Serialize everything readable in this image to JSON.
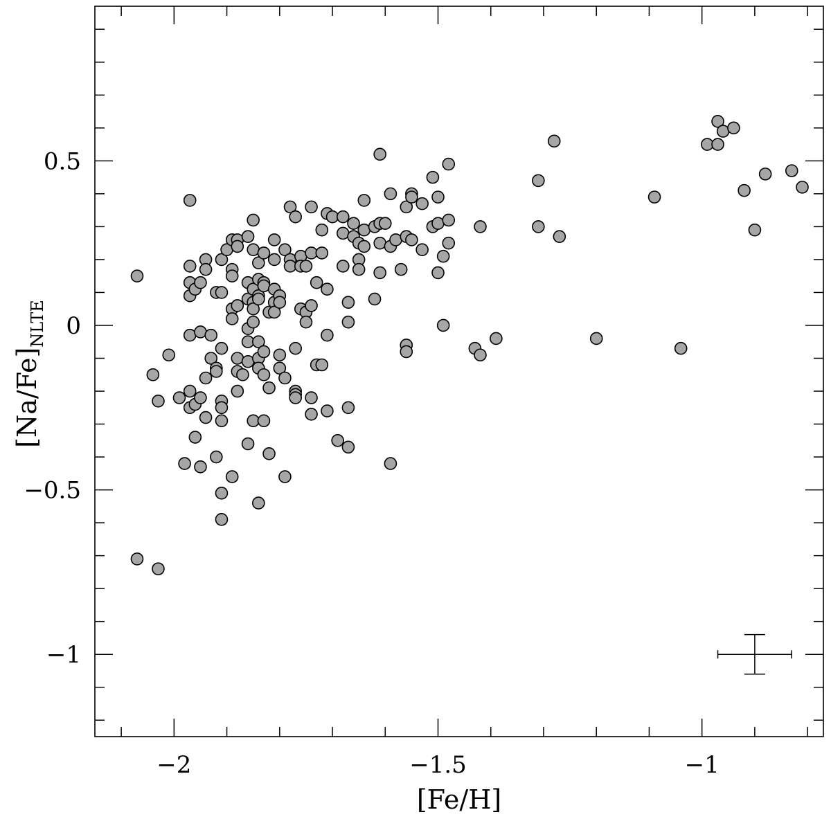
{
  "chart_data": {
    "type": "scatter",
    "xlabel": "[Fe/H]",
    "ylabel": "[Na/Fe]",
    "ylabel_subscript": "NLTE",
    "xlim": [
      -2.15,
      -0.77
    ],
    "ylim": [
      -1.25,
      0.97
    ],
    "x_ticks": [
      {
        "value": -2,
        "label": "−2"
      },
      {
        "value": -1.5,
        "label": "−1.5"
      },
      {
        "value": -1,
        "label": "−1"
      }
    ],
    "y_ticks": [
      {
        "value": 0.5,
        "label": "0.5"
      },
      {
        "value": 0,
        "label": "0"
      },
      {
        "value": -0.5,
        "label": "−0.5"
      },
      {
        "value": -1,
        "label": "−1"
      }
    ],
    "x_minor_step": 0.1,
    "y_minor_step": 0.1,
    "grid": false,
    "marker": {
      "fill": "#a6a6a6",
      "edge": "#000000"
    },
    "error_bar": {
      "x": -0.9,
      "y": -1.0,
      "xerr": 0.07,
      "yerr": 0.06
    },
    "points": [
      [
        -2.07,
        0.15
      ],
      [
        -2.07,
        -0.71
      ],
      [
        -2.04,
        -0.15
      ],
      [
        -2.03,
        -0.23
      ],
      [
        -2.03,
        -0.74
      ],
      [
        -2.01,
        -0.09
      ],
      [
        -1.99,
        -0.22
      ],
      [
        -1.98,
        -0.42
      ],
      [
        -1.97,
        0.38
      ],
      [
        -1.97,
        0.18
      ],
      [
        -1.97,
        0.13
      ],
      [
        -1.97,
        0.09
      ],
      [
        -1.97,
        -0.03
      ],
      [
        -1.97,
        -0.2
      ],
      [
        -1.97,
        -0.25
      ],
      [
        -1.96,
        0.11
      ],
      [
        -1.96,
        -0.24
      ],
      [
        -1.96,
        -0.34
      ],
      [
        -1.95,
        0.13
      ],
      [
        -1.95,
        -0.02
      ],
      [
        -1.95,
        -0.22
      ],
      [
        -1.95,
        -0.43
      ],
      [
        -1.94,
        0.2
      ],
      [
        -1.94,
        0.17
      ],
      [
        -1.94,
        -0.16
      ],
      [
        -1.94,
        -0.28
      ],
      [
        -1.93,
        -0.03
      ],
      [
        -1.93,
        -0.1
      ],
      [
        -1.92,
        0.1
      ],
      [
        -1.92,
        -0.13
      ],
      [
        -1.92,
        -0.14
      ],
      [
        -1.92,
        -0.4
      ],
      [
        -1.91,
        0.2
      ],
      [
        -1.91,
        0.1
      ],
      [
        -1.91,
        -0.07
      ],
      [
        -1.91,
        -0.23
      ],
      [
        -1.91,
        -0.25
      ],
      [
        -1.91,
        -0.29
      ],
      [
        -1.91,
        -0.51
      ],
      [
        -1.91,
        -0.59
      ],
      [
        -1.9,
        0.23
      ],
      [
        -1.89,
        0.26
      ],
      [
        -1.89,
        0.17
      ],
      [
        -1.89,
        0.15
      ],
      [
        -1.89,
        0.05
      ],
      [
        -1.89,
        0.02
      ],
      [
        -1.89,
        -0.46
      ],
      [
        -1.88,
        0.26
      ],
      [
        -1.88,
        0.24
      ],
      [
        -1.88,
        0.06
      ],
      [
        -1.88,
        -0.1
      ],
      [
        -1.88,
        -0.14
      ],
      [
        -1.88,
        -0.2
      ],
      [
        -1.87,
        -0.15
      ],
      [
        -1.86,
        0.27
      ],
      [
        -1.86,
        0.13
      ],
      [
        -1.86,
        0.08
      ],
      [
        -1.86,
        -0.01
      ],
      [
        -1.86,
        -0.05
      ],
      [
        -1.86,
        -0.11
      ],
      [
        -1.86,
        -0.36
      ],
      [
        -1.85,
        0.32
      ],
      [
        -1.85,
        0.23
      ],
      [
        -1.85,
        0.11
      ],
      [
        -1.85,
        0.07
      ],
      [
        -1.85,
        0.05
      ],
      [
        -1.85,
        0.01
      ],
      [
        -1.85,
        -0.29
      ],
      [
        -1.84,
        0.19
      ],
      [
        -1.84,
        0.14
      ],
      [
        -1.84,
        0.09
      ],
      [
        -1.84,
        0.08
      ],
      [
        -1.84,
        -0.05
      ],
      [
        -1.84,
        -0.1
      ],
      [
        -1.84,
        -0.13
      ],
      [
        -1.84,
        -0.54
      ],
      [
        -1.83,
        0.22
      ],
      [
        -1.83,
        0.13
      ],
      [
        -1.83,
        0.12
      ],
      [
        -1.83,
        -0.08
      ],
      [
        -1.83,
        -0.15
      ],
      [
        -1.83,
        -0.29
      ],
      [
        -1.82,
        0.04
      ],
      [
        -1.82,
        -0.19
      ],
      [
        -1.82,
        -0.39
      ],
      [
        -1.81,
        0.26
      ],
      [
        -1.81,
        0.2
      ],
      [
        -1.81,
        0.11
      ],
      [
        -1.81,
        0.07
      ],
      [
        -1.81,
        0.04
      ],
      [
        -1.8,
        0.09
      ],
      [
        -1.8,
        0.07
      ],
      [
        -1.8,
        -0.09
      ],
      [
        -1.8,
        -0.13
      ],
      [
        -1.79,
        0.23
      ],
      [
        -1.79,
        -0.16
      ],
      [
        -1.79,
        -0.46
      ],
      [
        -1.78,
        0.36
      ],
      [
        -1.78,
        0.2
      ],
      [
        -1.78,
        0.18
      ],
      [
        -1.77,
        0.33
      ],
      [
        -1.77,
        -0.07
      ],
      [
        -1.77,
        -0.2
      ],
      [
        -1.77,
        -0.21
      ],
      [
        -1.77,
        -0.22
      ],
      [
        -1.76,
        0.21
      ],
      [
        -1.76,
        0.18
      ],
      [
        -1.76,
        0.05
      ],
      [
        -1.75,
        0.18
      ],
      [
        -1.75,
        0.04
      ],
      [
        -1.75,
        0.01
      ],
      [
        -1.74,
        0.36
      ],
      [
        -1.74,
        0.22
      ],
      [
        -1.74,
        0.06
      ],
      [
        -1.74,
        -0.22
      ],
      [
        -1.74,
        -0.27
      ],
      [
        -1.73,
        0.13
      ],
      [
        -1.73,
        -0.12
      ],
      [
        -1.72,
        0.29
      ],
      [
        -1.72,
        0.22
      ],
      [
        -1.72,
        -0.12
      ],
      [
        -1.71,
        0.34
      ],
      [
        -1.71,
        0.11
      ],
      [
        -1.71,
        -0.03
      ],
      [
        -1.71,
        -0.26
      ],
      [
        -1.7,
        0.33
      ],
      [
        -1.69,
        -0.35
      ],
      [
        -1.68,
        0.33
      ],
      [
        -1.68,
        0.28
      ],
      [
        -1.68,
        0.18
      ],
      [
        -1.67,
        0.07
      ],
      [
        -1.67,
        0.01
      ],
      [
        -1.67,
        -0.25
      ],
      [
        -1.67,
        -0.37
      ],
      [
        -1.66,
        0.31
      ],
      [
        -1.66,
        0.27
      ],
      [
        -1.65,
        0.25
      ],
      [
        -1.65,
        0.2
      ],
      [
        -1.65,
        0.17
      ],
      [
        -1.64,
        0.38
      ],
      [
        -1.64,
        0.29
      ],
      [
        -1.64,
        0.24
      ],
      [
        -1.62,
        0.3
      ],
      [
        -1.62,
        0.08
      ],
      [
        -1.61,
        0.52
      ],
      [
        -1.61,
        0.31
      ],
      [
        -1.61,
        0.25
      ],
      [
        -1.61,
        0.16
      ],
      [
        -1.6,
        0.31
      ],
      [
        -1.59,
        0.4
      ],
      [
        -1.59,
        0.24
      ],
      [
        -1.59,
        -0.42
      ],
      [
        -1.58,
        0.26
      ],
      [
        -1.57,
        0.17
      ],
      [
        -1.56,
        0.36
      ],
      [
        -1.56,
        0.27
      ],
      [
        -1.56,
        -0.06
      ],
      [
        -1.56,
        -0.08
      ],
      [
        -1.55,
        0.4
      ],
      [
        -1.55,
        0.39
      ],
      [
        -1.55,
        0.26
      ],
      [
        -1.53,
        0.37
      ],
      [
        -1.53,
        0.23
      ],
      [
        -1.51,
        0.45
      ],
      [
        -1.51,
        0.3
      ],
      [
        -1.5,
        0.39
      ],
      [
        -1.5,
        0.31
      ],
      [
        -1.5,
        0.16
      ],
      [
        -1.49,
        0.21
      ],
      [
        -1.49,
        0.0
      ],
      [
        -1.48,
        0.49
      ],
      [
        -1.48,
        0.32
      ],
      [
        -1.48,
        0.25
      ],
      [
        -1.43,
        -0.07
      ],
      [
        -1.42,
        0.3
      ],
      [
        -1.42,
        -0.09
      ],
      [
        -1.39,
        -0.04
      ],
      [
        -1.31,
        0.44
      ],
      [
        -1.31,
        0.3
      ],
      [
        -1.28,
        0.56
      ],
      [
        -1.27,
        0.27
      ],
      [
        -1.2,
        -0.04
      ],
      [
        -1.09,
        0.39
      ],
      [
        -1.04,
        -0.07
      ],
      [
        -0.99,
        0.55
      ],
      [
        -0.97,
        0.62
      ],
      [
        -0.97,
        0.55
      ],
      [
        -0.96,
        0.59
      ],
      [
        -0.94,
        0.6
      ],
      [
        -0.92,
        0.41
      ],
      [
        -0.9,
        0.29
      ],
      [
        -0.88,
        0.46
      ],
      [
        -0.83,
        0.47
      ],
      [
        -0.81,
        0.42
      ]
    ]
  }
}
